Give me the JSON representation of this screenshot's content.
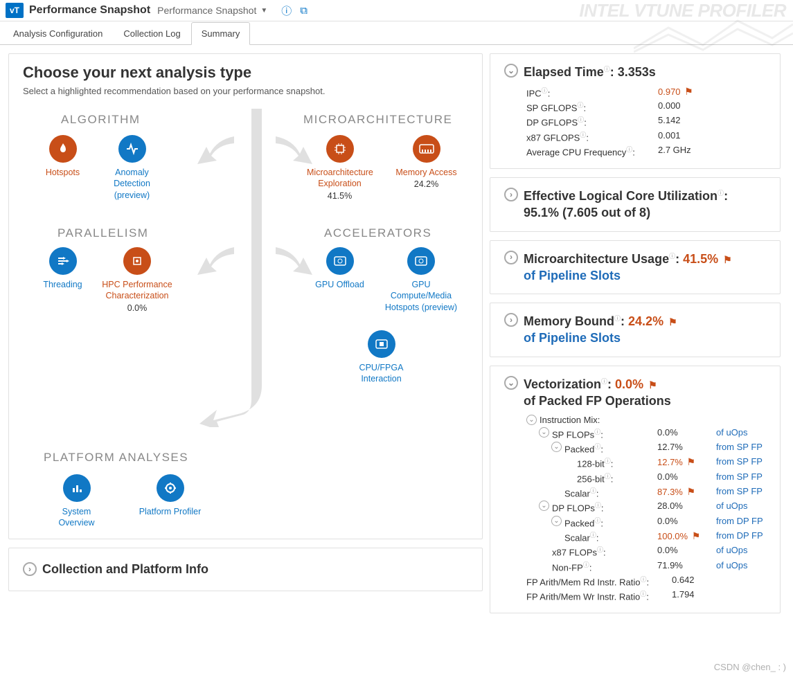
{
  "header": {
    "logo": "vT",
    "title": "Performance Snapshot",
    "dropdown": "Performance Snapshot",
    "brand": "INTEL VTUNE PROFILER"
  },
  "tabs": {
    "config": "Analysis Configuration",
    "log": "Collection Log",
    "summary": "Summary"
  },
  "main": {
    "title": "Choose your next analysis type",
    "subtitle": "Select a highlighted recommendation based on your performance snapshot.",
    "categories": {
      "algorithm": "ALGORITHM",
      "microarch": "MICROARCHITECTURE",
      "parallelism": "PARALLELISM",
      "accelerators": "ACCELERATORS",
      "platform": "PLATFORM ANALYSES"
    },
    "items": {
      "hotspots": {
        "label": "Hotspots",
        "color": "orange"
      },
      "anomaly": {
        "label": "Anomaly Detection (preview)",
        "color": "blue"
      },
      "microexp": {
        "label": "Microarchitecture Exploration",
        "value": "41.5%",
        "color": "orange"
      },
      "memaccess": {
        "label": "Memory Access",
        "value": "24.2%",
        "color": "orange"
      },
      "threading": {
        "label": "Threading",
        "color": "blue"
      },
      "hpc": {
        "label": "HPC Performance Characterization",
        "value": "0.0%",
        "color": "orange"
      },
      "gpuoff": {
        "label": "GPU Offload",
        "color": "blue"
      },
      "gpucm": {
        "label": "GPU Compute/Media Hotspots (preview)",
        "color": "blue"
      },
      "fpga": {
        "label": "CPU/FPGA Interaction",
        "color": "blue"
      },
      "sysov": {
        "label": "System Overview",
        "color": "blue"
      },
      "platprof": {
        "label": "Platform Profiler",
        "color": "blue"
      }
    },
    "collection": "Collection and Platform Info"
  },
  "elapsed": {
    "title": "Elapsed Time",
    "value": "3.353s",
    "rows": [
      {
        "k": "IPC",
        "v": "0.970",
        "flag": true,
        "orange": true
      },
      {
        "k": "SP GFLOPS",
        "v": "0.000"
      },
      {
        "k": "DP GFLOPS",
        "v": "5.142"
      },
      {
        "k": "x87 GFLOPS",
        "v": "0.001"
      },
      {
        "k": "Average CPU Frequency",
        "v": "2.7 GHz"
      }
    ]
  },
  "effcore": {
    "title": "Effective Logical Core Utilization",
    "value": "95.1% (7.605 out of 8)"
  },
  "microusage": {
    "title": "Microarchitecture Usage",
    "value": "41.5%",
    "suffix": "of Pipeline Slots"
  },
  "membound": {
    "title": "Memory Bound",
    "value": "24.2%",
    "suffix": "of Pipeline Slots"
  },
  "vector": {
    "title": "Vectorization",
    "value": "0.0%",
    "suffix": "of Packed FP Operations",
    "mixLabel": "Instruction Mix:",
    "rows": [
      {
        "k": "SP FLOPs",
        "v": "0.0%",
        "link": "of uOps",
        "indent": 1,
        "chev": true
      },
      {
        "k": "Packed",
        "v": "12.7%",
        "link": "from SP FP",
        "indent": 2,
        "chev": true
      },
      {
        "k": "128-bit",
        "v": "12.7%",
        "link": "from SP FP",
        "indent": 3,
        "orange": true,
        "flag": true
      },
      {
        "k": "256-bit",
        "v": "0.0%",
        "link": "from SP FP",
        "indent": 3
      },
      {
        "k": "Scalar",
        "v": "87.3%",
        "link": "from SP FP",
        "indent": 2,
        "orange": true,
        "flag": true
      },
      {
        "k": "DP FLOPs",
        "v": "28.0%",
        "link": "of uOps",
        "indent": 1,
        "chev": true
      },
      {
        "k": "Packed",
        "v": "0.0%",
        "link": "from DP FP",
        "indent": 2,
        "chev": true
      },
      {
        "k": "Scalar",
        "v": "100.0%",
        "link": "from DP FP",
        "indent": 2,
        "orange": true,
        "flag": true
      },
      {
        "k": "x87 FLOPs",
        "v": "0.0%",
        "link": "of uOps",
        "indent": 1
      },
      {
        "k": "Non-FP",
        "v": "71.9%",
        "link": "of uOps",
        "indent": 1
      }
    ],
    "ratios": [
      {
        "k": "FP Arith/Mem Rd Instr. Ratio",
        "v": "0.642"
      },
      {
        "k": "FP Arith/Mem Wr Instr. Ratio",
        "v": "1.794"
      }
    ]
  },
  "footer": "CSDN @chen_  : )",
  "colors": {
    "orange": "#c84e18",
    "blue": "#1178c5",
    "linkBlue": "#1e6bb8",
    "gray": "#888888",
    "border": "#e0e0e0"
  }
}
